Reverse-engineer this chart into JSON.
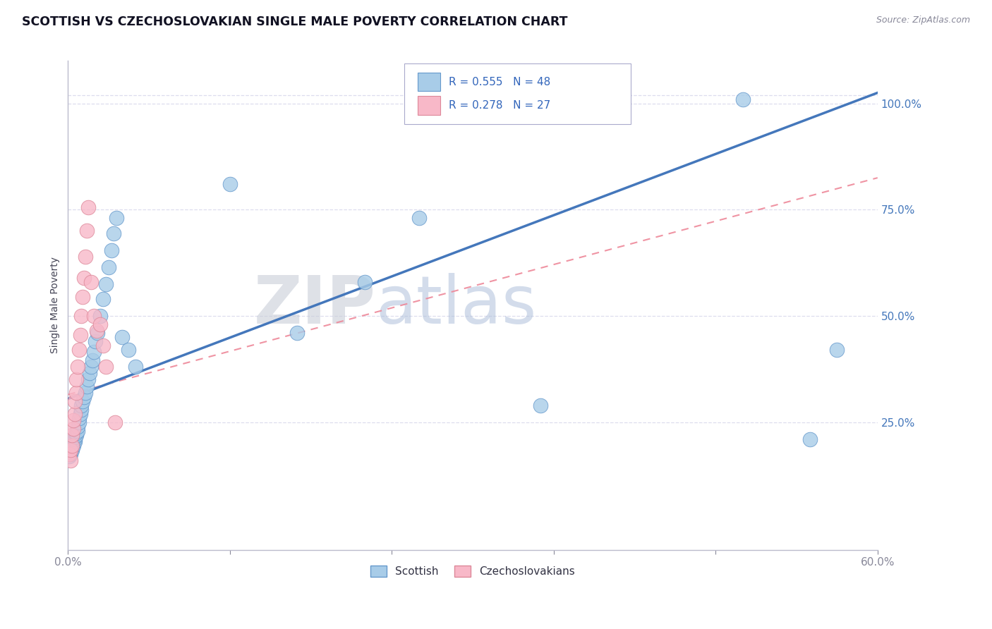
{
  "title": "SCOTTISH VS CZECHOSLOVAKIAN SINGLE MALE POVERTY CORRELATION CHART",
  "source_text": "Source: ZipAtlas.com",
  "ylabel": "Single Male Poverty",
  "xlim": [
    0.0,
    0.6
  ],
  "ylim": [
    -0.05,
    1.1
  ],
  "ytick_positions": [
    0.25,
    0.5,
    0.75,
    1.0
  ],
  "ytick_labels": [
    "25.0%",
    "50.0%",
    "75.0%",
    "100.0%"
  ],
  "legend_r_scottish": "R = 0.555",
  "legend_n_scottish": "N = 48",
  "legend_r_czech": "R = 0.278",
  "legend_n_czech": "N = 27",
  "watermark_zip": "ZIP",
  "watermark_atlas": "atlas",
  "scottish_color": "#A8CCE8",
  "scottish_edge_color": "#6699CC",
  "czech_color": "#F8B8C8",
  "czech_edge_color": "#DD8899",
  "scottish_line_color": "#4477BB",
  "czech_line_color": "#EE8899",
  "grid_color": "#DDDDEE",
  "background_color": "#FFFFFF",
  "scottish_line_intercept": 0.305,
  "scottish_line_slope": 1.2,
  "czech_line_intercept": 0.315,
  "czech_line_slope": 0.85,
  "scottish_x": [
    0.001,
    0.002,
    0.002,
    0.003,
    0.003,
    0.004,
    0.004,
    0.005,
    0.005,
    0.005,
    0.006,
    0.006,
    0.007,
    0.007,
    0.008,
    0.008,
    0.009,
    0.01,
    0.01,
    0.011,
    0.012,
    0.013,
    0.014,
    0.015,
    0.016,
    0.017,
    0.018,
    0.019,
    0.02,
    0.022,
    0.024,
    0.026,
    0.028,
    0.03,
    0.032,
    0.034,
    0.036,
    0.04,
    0.045,
    0.05,
    0.12,
    0.17,
    0.22,
    0.26,
    0.35,
    0.5,
    0.55,
    0.57
  ],
  "scottish_y": [
    0.17,
    0.175,
    0.18,
    0.185,
    0.19,
    0.195,
    0.2,
    0.205,
    0.21,
    0.215,
    0.22,
    0.225,
    0.23,
    0.24,
    0.25,
    0.26,
    0.27,
    0.28,
    0.29,
    0.3,
    0.31,
    0.32,
    0.335,
    0.35,
    0.365,
    0.38,
    0.395,
    0.415,
    0.44,
    0.46,
    0.5,
    0.54,
    0.575,
    0.615,
    0.655,
    0.695,
    0.73,
    0.45,
    0.42,
    0.38,
    0.81,
    0.46,
    0.58,
    0.73,
    0.29,
    1.01,
    0.21,
    0.42
  ],
  "czech_x": [
    0.001,
    0.002,
    0.002,
    0.003,
    0.003,
    0.004,
    0.004,
    0.005,
    0.005,
    0.006,
    0.006,
    0.007,
    0.008,
    0.009,
    0.01,
    0.011,
    0.012,
    0.013,
    0.014,
    0.015,
    0.017,
    0.019,
    0.021,
    0.024,
    0.026,
    0.028,
    0.035
  ],
  "czech_y": [
    0.175,
    0.16,
    0.185,
    0.195,
    0.22,
    0.235,
    0.255,
    0.27,
    0.3,
    0.32,
    0.35,
    0.38,
    0.42,
    0.455,
    0.5,
    0.545,
    0.59,
    0.64,
    0.7,
    0.755,
    0.58,
    0.5,
    0.465,
    0.48,
    0.43,
    0.38,
    0.25
  ]
}
